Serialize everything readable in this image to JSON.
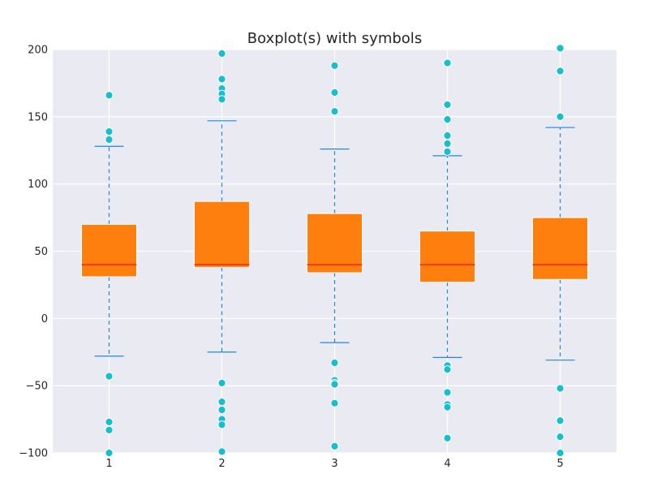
{
  "chart_data": {
    "type": "boxplot",
    "title": "Boxplot(s) with symbols",
    "xlabel": "",
    "ylabel": "",
    "ylim": [
      -100,
      200
    ],
    "yticks": [
      200,
      150,
      100,
      50,
      0,
      -50,
      -100
    ],
    "ytick_labels": [
      "200",
      "150",
      "100",
      "50",
      "0",
      "−50",
      "−100"
    ],
    "categories": [
      "1",
      "2",
      "3",
      "4",
      "5"
    ],
    "grid": true,
    "boxes": [
      {
        "label": "1",
        "q1": 31,
        "median": 40,
        "q3": 70,
        "whisker_low": -28,
        "whisker_high": 128,
        "fliers": [
          166,
          139,
          133,
          -43,
          -77,
          -83,
          -100
        ]
      },
      {
        "label": "2",
        "q1": 38,
        "median": 40,
        "q3": 87,
        "whisker_low": -25,
        "whisker_high": 147,
        "fliers": [
          197,
          178,
          171,
          167,
          163,
          -48,
          -62,
          -68,
          -75,
          -79,
          -99
        ]
      },
      {
        "label": "3",
        "q1": 34,
        "median": 40,
        "q3": 78,
        "whisker_low": -18,
        "whisker_high": 126,
        "fliers": [
          188,
          168,
          154,
          -33,
          -46,
          -48,
          -49,
          -63,
          -95
        ]
      },
      {
        "label": "4",
        "q1": 27,
        "median": 40,
        "q3": 65,
        "whisker_low": -29,
        "whisker_high": 121,
        "fliers": [
          190,
          159,
          148,
          136,
          130,
          124,
          -35,
          -38,
          -55,
          -64,
          -66,
          -89
        ]
      },
      {
        "label": "5",
        "q1": 29,
        "median": 40,
        "q3": 75,
        "whisker_low": -31,
        "whisker_high": 142,
        "fliers": [
          201,
          184,
          150,
          -52,
          -76,
          -88,
          -100
        ]
      }
    ],
    "colors": {
      "plot_background": "#eaeaf2",
      "grid": "#ffffff",
      "box_fill": "#ff7f0e",
      "median": "#ff0000",
      "whisker": "#1e88e5",
      "flier_fill": "#17becf",
      "flier_edge": "#ffffff",
      "text": "#262626"
    }
  }
}
